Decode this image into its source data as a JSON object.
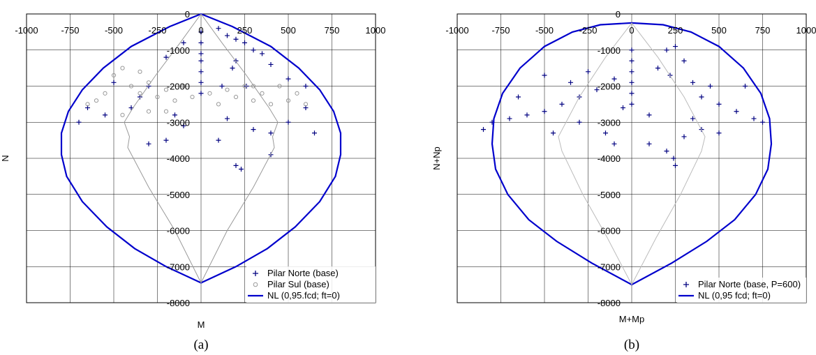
{
  "chart_data": [
    {
      "type": "scatter",
      "panel_caption": "(a)",
      "xlabel": "M",
      "ylabel": "N",
      "xlim": [
        -1000,
        1000
      ],
      "ylim": [
        -8000,
        0
      ],
      "x_ticks": [
        "-1000",
        "-750",
        "-500",
        "-250",
        "0",
        "250",
        "500",
        "750",
        "1000"
      ],
      "y_ticks": [
        "0",
        "-1000",
        "-2000",
        "-3000",
        "-4000",
        "-5000",
        "-6000",
        "-7000",
        "-8000"
      ],
      "grid": true,
      "legend_position": "bottom-right",
      "series": [
        {
          "name": "Pilar Norte (base)",
          "marker": "+",
          "color": "#000080",
          "values": [
            [
              0,
              -500
            ],
            [
              0,
              -800
            ],
            [
              0,
              -1100
            ],
            [
              0,
              -1300
            ],
            [
              0,
              -1600
            ],
            [
              0,
              -1900
            ],
            [
              0,
              -2200
            ],
            [
              100,
              -400
            ],
            [
              150,
              -600
            ],
            [
              200,
              -700
            ],
            [
              250,
              -800
            ],
            [
              300,
              -1000
            ],
            [
              200,
              -1300
            ],
            [
              350,
              -1100
            ],
            [
              180,
              -1500
            ],
            [
              120,
              -2000
            ],
            [
              260,
              -2000
            ],
            [
              400,
              -1400
            ],
            [
              500,
              -1800
            ],
            [
              600,
              -2000
            ],
            [
              -100,
              -800
            ],
            [
              -200,
              -1200
            ],
            [
              -300,
              -2000
            ],
            [
              -500,
              -1900
            ],
            [
              -650,
              -2600
            ],
            [
              -700,
              -3000
            ],
            [
              -550,
              -2800
            ],
            [
              -350,
              -2300
            ],
            [
              -400,
              -2600
            ],
            [
              150,
              -2900
            ],
            [
              300,
              -3200
            ],
            [
              400,
              -3300
            ],
            [
              500,
              -3000
            ],
            [
              600,
              -2600
            ],
            [
              650,
              -3300
            ],
            [
              -100,
              -3100
            ],
            [
              -200,
              -3500
            ],
            [
              200,
              -4200
            ],
            [
              230,
              -4300
            ],
            [
              -300,
              -3600
            ],
            [
              -150,
              -2800
            ],
            [
              400,
              -3900
            ],
            [
              100,
              -3500
            ]
          ]
        },
        {
          "name": "Pilar Sul (base)",
          "marker": "o",
          "color": "#999999",
          "values": [
            [
              -500,
              -1700
            ],
            [
              -450,
              -1500
            ],
            [
              -400,
              -2000
            ],
            [
              -550,
              -2200
            ],
            [
              -600,
              -2400
            ],
            [
              -350,
              -2200
            ],
            [
              -300,
              -1900
            ],
            [
              -250,
              -2300
            ],
            [
              -200,
              -2100
            ],
            [
              -150,
              -2400
            ],
            [
              -100,
              -2000
            ],
            [
              -50,
              -2300
            ],
            [
              50,
              -2200
            ],
            [
              100,
              -2500
            ],
            [
              150,
              -2100
            ],
            [
              200,
              -2300
            ],
            [
              250,
              -2000
            ],
            [
              300,
              -2400
            ],
            [
              350,
              -2200
            ],
            [
              400,
              -2500
            ],
            [
              450,
              -2000
            ],
            [
              500,
              -2400
            ],
            [
              550,
              -2200
            ],
            [
              600,
              -2500
            ],
            [
              -650,
              -2500
            ],
            [
              -450,
              -2800
            ],
            [
              -300,
              -2700
            ],
            [
              -200,
              -2700
            ],
            [
              300,
              -2000
            ],
            [
              -350,
              -1600
            ]
          ]
        },
        {
          "name": "NL (0,95.fcd; ft=0)",
          "type": "line",
          "color": "#0000cc",
          "values": [
            [
              0,
              0
            ],
            [
              180,
              -350
            ],
            [
              400,
              -900
            ],
            [
              560,
              -1500
            ],
            [
              680,
              -2100
            ],
            [
              760,
              -2700
            ],
            [
              800,
              -3300
            ],
            [
              800,
              -3900
            ],
            [
              770,
              -4500
            ],
            [
              680,
              -5200
            ],
            [
              540,
              -5900
            ],
            [
              380,
              -6500
            ],
            [
              200,
              -7000
            ],
            [
              0,
              -7450
            ],
            [
              -200,
              -7000
            ],
            [
              -380,
              -6500
            ],
            [
              -540,
              -5900
            ],
            [
              -680,
              -5200
            ],
            [
              -770,
              -4500
            ],
            [
              -800,
              -3900
            ],
            [
              -800,
              -3300
            ],
            [
              -760,
              -2700
            ],
            [
              -680,
              -2100
            ],
            [
              -560,
              -1500
            ],
            [
              -400,
              -900
            ],
            [
              -180,
              -350
            ],
            [
              0,
              0
            ]
          ]
        },
        {
          "name": "",
          "type": "line",
          "color": "#999999",
          "values": [
            [
              0,
              0
            ],
            [
              -120,
              -800
            ],
            [
              -260,
              -1700
            ],
            [
              -390,
              -2600
            ],
            [
              -440,
              -3000
            ],
            [
              -410,
              -3400
            ],
            [
              -420,
              -3700
            ],
            [
              -300,
              -4800
            ],
            [
              -150,
              -6000
            ],
            [
              0,
              -7450
            ],
            [
              150,
              -6000
            ],
            [
              300,
              -4800
            ],
            [
              420,
              -3700
            ],
            [
              410,
              -3400
            ],
            [
              440,
              -3000
            ],
            [
              390,
              -2600
            ],
            [
              260,
              -1700
            ],
            [
              120,
              -800
            ],
            [
              0,
              0
            ]
          ]
        }
      ]
    },
    {
      "type": "scatter",
      "panel_caption": "(b)",
      "xlabel": "M+Mp",
      "ylabel": "N+Np",
      "xlim": [
        -1000,
        1000
      ],
      "ylim": [
        -8000,
        0
      ],
      "x_ticks": [
        "-1000",
        "-750",
        "-500",
        "-250",
        "0",
        "250",
        "500",
        "750",
        "1000"
      ],
      "y_ticks": [
        "0",
        "-1000",
        "-2000",
        "-3000",
        "-4000",
        "-5000",
        "-6000",
        "-7000",
        "-8000"
      ],
      "grid": true,
      "legend_position": "bottom-right",
      "series": [
        {
          "name": "Pilar Norte (base, P=600)",
          "marker": "+",
          "color": "#000080",
          "values": [
            [
              0,
              -1000
            ],
            [
              0,
              -1300
            ],
            [
              0,
              -1600
            ],
            [
              0,
              -1900
            ],
            [
              0,
              -2200
            ],
            [
              0,
              -2500
            ],
            [
              200,
              -1000
            ],
            [
              250,
              -900
            ],
            [
              300,
              -1300
            ],
            [
              220,
              -1700
            ],
            [
              350,
              -1900
            ],
            [
              400,
              -2300
            ],
            [
              500,
              -2500
            ],
            [
              600,
              -2700
            ],
            [
              650,
              -2000
            ],
            [
              700,
              -2900
            ],
            [
              750,
              -3000
            ],
            [
              -100,
              -1800
            ],
            [
              -200,
              -2100
            ],
            [
              -300,
              -2300
            ],
            [
              -400,
              -2500
            ],
            [
              -500,
              -2700
            ],
            [
              -600,
              -2800
            ],
            [
              -700,
              -2900
            ],
            [
              -800,
              -3000
            ],
            [
              -850,
              -3200
            ],
            [
              -650,
              -2300
            ],
            [
              -450,
              -3300
            ],
            [
              -300,
              -3000
            ],
            [
              -150,
              -3300
            ],
            [
              -100,
              -3600
            ],
            [
              100,
              -3600
            ],
            [
              200,
              -3800
            ],
            [
              240,
              -4000
            ],
            [
              250,
              -4200
            ],
            [
              300,
              -3400
            ],
            [
              400,
              -3200
            ],
            [
              500,
              -3300
            ],
            [
              -500,
              -1700
            ],
            [
              -350,
              -1900
            ],
            [
              -250,
              -1600
            ],
            [
              150,
              -1500
            ],
            [
              450,
              -2000
            ],
            [
              100,
              -2800
            ],
            [
              -50,
              -2600
            ],
            [
              350,
              -2900
            ]
          ]
        },
        {
          "name": "NL (0,95 fcd; ft=0)",
          "type": "line",
          "color": "#0000cc",
          "values": [
            [
              0,
              -250
            ],
            [
              180,
              -300
            ],
            [
              340,
              -500
            ],
            [
              500,
              -900
            ],
            [
              640,
              -1500
            ],
            [
              740,
              -2200
            ],
            [
              790,
              -2900
            ],
            [
              800,
              -3600
            ],
            [
              780,
              -4300
            ],
            [
              710,
              -5000
            ],
            [
              590,
              -5700
            ],
            [
              430,
              -6300
            ],
            [
              230,
              -6900
            ],
            [
              0,
              -7500
            ],
            [
              -230,
              -6900
            ],
            [
              -430,
              -6300
            ],
            [
              -590,
              -5700
            ],
            [
              -710,
              -5000
            ],
            [
              -780,
              -4300
            ],
            [
              -800,
              -3600
            ],
            [
              -790,
              -2900
            ],
            [
              -740,
              -2200
            ],
            [
              -640,
              -1500
            ],
            [
              -500,
              -900
            ],
            [
              -340,
              -500
            ],
            [
              -180,
              -300
            ],
            [
              0,
              -250
            ]
          ]
        },
        {
          "name": "",
          "type": "line",
          "color": "#bbbbbb",
          "values": [
            [
              0,
              -250
            ],
            [
              -150,
              -1200
            ],
            [
              -300,
              -2300
            ],
            [
              -420,
              -3400
            ],
            [
              -400,
              -3800
            ],
            [
              -280,
              -5000
            ],
            [
              -140,
              -6200
            ],
            [
              0,
              -7500
            ],
            [
              140,
              -6200
            ],
            [
              280,
              -5000
            ],
            [
              400,
              -3800
            ],
            [
              420,
              -3400
            ],
            [
              300,
              -2300
            ],
            [
              150,
              -1200
            ],
            [
              0,
              -250
            ]
          ]
        }
      ]
    }
  ]
}
